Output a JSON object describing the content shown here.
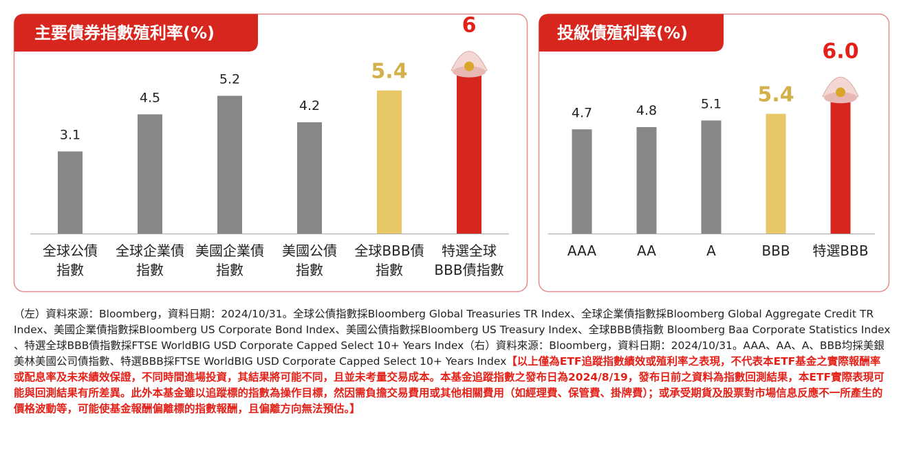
{
  "chart_data": [
    {
      "type": "bar",
      "title": "主要債券指數殖利率(%)",
      "categories": [
        [
          "全球公債",
          "指數"
        ],
        [
          "全球企業債",
          "指數"
        ],
        [
          "美國企業債",
          "指數"
        ],
        [
          "美國公債",
          "指數"
        ],
        [
          "全球BBB債",
          "指數"
        ],
        [
          "特選全球",
          "BBB債指數"
        ]
      ],
      "values": [
        3.1,
        4.5,
        5.2,
        4.2,
        5.4,
        6
      ],
      "colors": [
        "#878787",
        "#878787",
        "#878787",
        "#878787",
        "#e8c766",
        "#d7261e"
      ],
      "label_colors": [
        "#222222",
        "#222222",
        "#222222",
        "#222222",
        "#d4b04a",
        "#e32118"
      ],
      "ylim": [
        0,
        7
      ]
    },
    {
      "type": "bar",
      "title": "投級債殖利率(%)",
      "categories": [
        [
          "AAA"
        ],
        [
          "AA"
        ],
        [
          "A"
        ],
        [
          "BBB"
        ],
        [
          "特選BBB"
        ]
      ],
      "values": [
        4.7,
        4.8,
        5.1,
        5.4,
        6.0
      ],
      "value_labels": [
        "4.7",
        "4.8",
        "5.1",
        "5.4",
        "6.0"
      ],
      "colors": [
        "#878787",
        "#878787",
        "#878787",
        "#e8c766",
        "#d7261e"
      ],
      "label_colors": [
        "#222222",
        "#222222",
        "#222222",
        "#d4b04a",
        "#e32118"
      ],
      "ylim": [
        0,
        7
      ]
    }
  ],
  "footnote": {
    "text": "（左）資料來源：Bloomberg，資料日期：2024/10/31。全球公債指數採Bloomberg Global Treasuries TR Index、全球企業債指數採Bloomberg Global Aggregate Credit TR Index、美國企業債指數採Bloomberg US Corporate Bond Index、美國公債指數採Bloomberg US Treasury Index、全球BBB債指數 Bloomberg Baa Corporate Statistics Index 、特選全球BBB債指數採FTSE WorldBIG USD Corporate Capped Select 10+ Years Index（右）資料來源：Bloomberg，資料日期：2024/10/31。AAA、AA、A、BBB均採美銀美林美國公司債指數、特選BBB採FTSE WorldBIG USD Corporate Capped Select 10+ Years Index",
    "disclaimer": "【以上僅為ETF追蹤指數績效或殖利率之表現，不代表本ETF基金之實際報酬率或配息率及未來績效保證，不同時間進場投資，其結果將可能不同，且並未考量交易成本。本基金追蹤指數之發布日為2024/8/19，發布日前之資料為指數回測結果，本ETF實際表現可能與回測結果有所差異。此外本基金雖以追蹤標的指數為操作目標，然因需負擔交易費用或其他相關費用（如經理費、保管費、掛牌費）；或承受期貨及股票對市場信息反應不一所產生的價格波動等，可能使基金報酬偏離標的指數報酬，且偏離方向無法預估。】"
  }
}
